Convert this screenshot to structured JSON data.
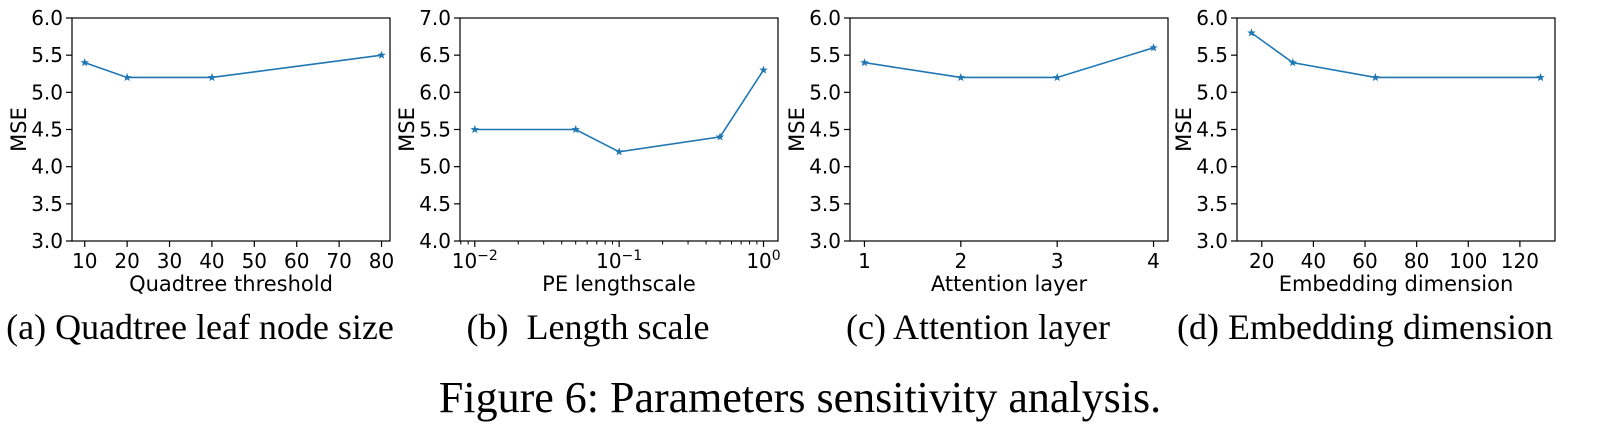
{
  "figure_caption": "Figure 6: Parameters sensitivity analysis.",
  "colors": {
    "line": "#1f77b4",
    "axis": "#000000"
  },
  "chart_data": [
    {
      "type": "line",
      "caption": "(a) Quadtree leaf node size",
      "xlabel": "Quadtree threshold",
      "ylabel": "MSE",
      "x_scale": "linear",
      "xlim": [
        7,
        82
      ],
      "ylim": [
        3.0,
        6.0
      ],
      "xticks": [
        10,
        20,
        30,
        40,
        50,
        60,
        70,
        80
      ],
      "xtick_labels": [
        "10",
        "20",
        "30",
        "40",
        "50",
        "60",
        "70",
        "80"
      ],
      "yticks": [
        3.0,
        3.5,
        4.0,
        4.5,
        5.0,
        5.5,
        6.0
      ],
      "ytick_labels": [
        "3.0",
        "3.5",
        "4.0",
        "4.5",
        "5.0",
        "5.5",
        "6.0"
      ],
      "x": [
        10,
        20,
        40,
        80
      ],
      "y": [
        5.4,
        5.2,
        5.2,
        5.5
      ],
      "marker": "star"
    },
    {
      "type": "line",
      "caption": "(b)  Length scale",
      "xlabel": "PE lengthscale",
      "ylabel": "MSE",
      "x_scale": "log",
      "xlim": [
        0.0079,
        1.26
      ],
      "ylim": [
        4.0,
        7.0
      ],
      "xticks": [
        0.01,
        0.1,
        1
      ],
      "xtick_labels": [
        {
          "base": "10",
          "exp": "−2"
        },
        {
          "base": "10",
          "exp": "−1"
        },
        {
          "base": "10",
          "exp": "0"
        }
      ],
      "yticks": [
        4.0,
        4.5,
        5.0,
        5.5,
        6.0,
        6.5,
        7.0
      ],
      "ytick_labels": [
        "4.0",
        "4.5",
        "5.0",
        "5.5",
        "6.0",
        "6.5",
        "7.0"
      ],
      "x": [
        0.01,
        0.05,
        0.1,
        0.5,
        1.0
      ],
      "y": [
        5.5,
        5.5,
        5.2,
        5.4,
        6.3
      ],
      "marker": "star"
    },
    {
      "type": "line",
      "caption": "(c) Attention layer",
      "xlabel": "Attention layer",
      "ylabel": "MSE",
      "x_scale": "linear",
      "xlim": [
        0.85,
        4.15
      ],
      "ylim": [
        3.0,
        6.0
      ],
      "xticks": [
        1,
        2,
        3,
        4
      ],
      "xtick_labels": [
        "1",
        "2",
        "3",
        "4"
      ],
      "yticks": [
        3.0,
        3.5,
        4.0,
        4.5,
        5.0,
        5.5,
        6.0
      ],
      "ytick_labels": [
        "3.0",
        "3.5",
        "4.0",
        "4.5",
        "5.0",
        "5.5",
        "6.0"
      ],
      "x": [
        1,
        2,
        3,
        4
      ],
      "y": [
        5.4,
        5.2,
        5.2,
        5.6
      ],
      "marker": "star"
    },
    {
      "type": "line",
      "caption": "(d) Embedding dimension",
      "xlabel": "Embedding dimension",
      "ylabel": "MSE",
      "x_scale": "linear",
      "xlim": [
        10.4,
        133.6
      ],
      "ylim": [
        3.0,
        6.0
      ],
      "xticks": [
        20,
        40,
        60,
        80,
        100,
        120
      ],
      "xtick_labels": [
        "20",
        "40",
        "60",
        "80",
        "100",
        "120"
      ],
      "yticks": [
        3.0,
        3.5,
        4.0,
        4.5,
        5.0,
        5.5,
        6.0
      ],
      "ytick_labels": [
        "3.0",
        "3.5",
        "4.0",
        "4.5",
        "5.0",
        "5.5",
        "6.0"
      ],
      "x": [
        16,
        32,
        64,
        128
      ],
      "y": [
        5.8,
        5.4,
        5.2,
        5.2
      ],
      "marker": "star"
    }
  ]
}
